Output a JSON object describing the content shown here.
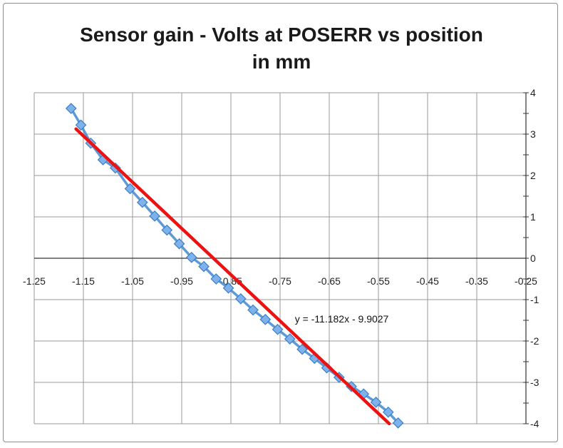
{
  "chart_data": {
    "type": "scatter",
    "title_lines": [
      "Sensor gain - Volts at POSERR vs position",
      "in mm"
    ],
    "xlabel": "",
    "ylabel": "",
    "xlim": [
      -1.25,
      -0.25
    ],
    "ylim": [
      -4,
      4
    ],
    "x_ticks": [
      -1.25,
      -1.15,
      -1.05,
      -0.95,
      -0.85,
      -0.75,
      -0.65,
      -0.55,
      -0.45,
      -0.35,
      -0.25
    ],
    "x_tick_labels": [
      "-1.25",
      "-1.15",
      "-1.05",
      "-0.95",
      "-0.85",
      "-0.75",
      "-0.65",
      "-0.55",
      "-0.45",
      "-0.35",
      "-0.25"
    ],
    "y_ticks": [
      4,
      3,
      2,
      1,
      0,
      -1,
      -2,
      -3,
      -4
    ],
    "y_tick_labels": [
      "4",
      "3",
      "2",
      "1",
      "0",
      "-1",
      "-2",
      "-3",
      "-4"
    ],
    "grid": true,
    "series": [
      {
        "name": "POSERR",
        "color": "#4a8fd6",
        "marker": "diamond",
        "points": [
          [
            -1.175,
            3.62
          ],
          [
            -1.155,
            3.22
          ],
          [
            -1.135,
            2.78
          ],
          [
            -1.11,
            2.38
          ],
          [
            -1.085,
            2.18
          ],
          [
            -1.055,
            1.68
          ],
          [
            -1.03,
            1.35
          ],
          [
            -1.005,
            1.02
          ],
          [
            -0.98,
            0.68
          ],
          [
            -0.955,
            0.35
          ],
          [
            -0.93,
            0.02
          ],
          [
            -0.905,
            -0.2
          ],
          [
            -0.88,
            -0.5
          ],
          [
            -0.855,
            -0.72
          ],
          [
            -0.83,
            -0.98
          ],
          [
            -0.805,
            -1.25
          ],
          [
            -0.78,
            -1.48
          ],
          [
            -0.755,
            -1.72
          ],
          [
            -0.73,
            -1.95
          ],
          [
            -0.705,
            -2.2
          ],
          [
            -0.68,
            -2.42
          ],
          [
            -0.655,
            -2.65
          ],
          [
            -0.63,
            -2.88
          ],
          [
            -0.605,
            -3.1
          ],
          [
            -0.58,
            -3.28
          ],
          [
            -0.555,
            -3.48
          ],
          [
            -0.53,
            -3.72
          ],
          [
            -0.51,
            -3.98
          ]
        ]
      }
    ],
    "trendline": {
      "type": "linear",
      "slope": -11.182,
      "intercept": -9.9027,
      "x_range": [
        -1.165,
        -0.528
      ],
      "color": "#ee1111",
      "equation_label": "y = -11.182x - 9.9027"
    }
  }
}
